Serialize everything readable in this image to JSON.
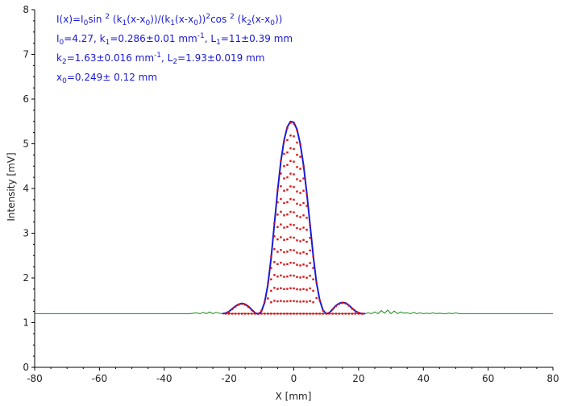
{
  "chart_data": {
    "type": "scatter",
    "title": "",
    "xlabel": "X [mm]",
    "ylabel": "Intensity [mV]",
    "xlim": [
      -80,
      80
    ],
    "ylim": [
      0,
      8
    ],
    "xticks": [
      -80,
      -60,
      -40,
      -20,
      0,
      20,
      40,
      60,
      80
    ],
    "yticks": [
      0,
      1,
      2,
      3,
      4,
      5,
      6,
      7,
      8
    ],
    "grid": false,
    "baseline": 1.2,
    "annotations": [
      {
        "parts": [
          [
            "I(x)=I",
            ""
          ],
          [
            "0",
            "sub"
          ],
          [
            "sin ",
            ""
          ],
          [
            "2",
            "sup"
          ],
          [
            " (k",
            ""
          ],
          [
            "1",
            "sub"
          ],
          [
            "(x-x",
            ""
          ],
          [
            "0",
            "sub"
          ],
          [
            "))/(k",
            ""
          ],
          [
            "1",
            "sub"
          ],
          [
            "(x-x",
            ""
          ],
          [
            "0",
            "sub"
          ],
          [
            "))",
            ""
          ],
          [
            "2",
            "sup"
          ],
          [
            "cos ",
            ""
          ],
          [
            "2",
            "sup"
          ],
          [
            " (k",
            ""
          ],
          [
            "2",
            "sub"
          ],
          [
            "(x-x",
            ""
          ],
          [
            "0",
            "sub"
          ],
          [
            "))",
            ""
          ]
        ]
      },
      {
        "parts": [
          [
            "I",
            ""
          ],
          [
            "0",
            "sub"
          ],
          [
            "=4.27,  k",
            ""
          ],
          [
            "1",
            "sub"
          ],
          [
            "=0.286±0.01 mm",
            ""
          ],
          [
            "-1",
            "sup"
          ],
          [
            ",   L",
            ""
          ],
          [
            "1",
            "sub"
          ],
          [
            "=11±0.39 mm",
            ""
          ]
        ]
      },
      {
        "parts": [
          [
            "k",
            ""
          ],
          [
            "2",
            "sub"
          ],
          [
            "=1.63±0.016 mm",
            ""
          ],
          [
            "-1",
            "sup"
          ],
          [
            ",   L",
            ""
          ],
          [
            "2",
            "sub"
          ],
          [
            "=1.93±0.019 mm",
            ""
          ]
        ]
      },
      {
        "parts": [
          [
            "x",
            ""
          ],
          [
            "0",
            "sub"
          ],
          [
            "=0.249±  0.12 mm",
            ""
          ]
        ]
      }
    ],
    "series": [
      {
        "kind": "measured-line",
        "color": "#118811",
        "x": [
          -80,
          -32,
          -30,
          -29,
          -28,
          -27,
          -26,
          -25,
          -24,
          -23,
          -22,
          22,
          23,
          24,
          25,
          26,
          27,
          28,
          29,
          30,
          31,
          32,
          33,
          34,
          35,
          36,
          37,
          38,
          39,
          40,
          41,
          42,
          43,
          44,
          45,
          46,
          47,
          48,
          49,
          50,
          51,
          52,
          80
        ],
        "y": [
          1.2,
          1.2,
          1.22,
          1.2,
          1.23,
          1.2,
          1.24,
          1.2,
          1.23,
          1.21,
          1.2,
          1.2,
          1.22,
          1.2,
          1.24,
          1.2,
          1.27,
          1.21,
          1.28,
          1.2,
          1.26,
          1.2,
          1.24,
          1.21,
          1.22,
          1.2,
          1.23,
          1.2,
          1.22,
          1.2,
          1.21,
          1.2,
          1.22,
          1.2,
          1.21,
          1.2,
          1.2,
          1.21,
          1.2,
          1.22,
          1.2,
          1.2,
          1.2
        ]
      },
      {
        "kind": "fit-line",
        "color": "#1a1ad6",
        "x": [
          -22,
          -21,
          -20,
          -19,
          -18,
          -17,
          -16,
          -15,
          -14,
          -13,
          -12,
          -11,
          -10,
          -9,
          -8,
          -7,
          -6,
          -5,
          -4,
          -3,
          -2,
          -1,
          0,
          1,
          2,
          3,
          4,
          5,
          6,
          7,
          8,
          9,
          10,
          11,
          12,
          13,
          14,
          15,
          16,
          17,
          18,
          19,
          20,
          21,
          22
        ],
        "y": [
          1.2,
          1.21,
          1.25,
          1.31,
          1.37,
          1.41,
          1.43,
          1.41,
          1.36,
          1.29,
          1.22,
          1.19,
          1.25,
          1.45,
          1.85,
          2.45,
          3.2,
          3.95,
          4.6,
          5.08,
          5.38,
          5.5,
          5.48,
          5.32,
          5.0,
          4.52,
          3.9,
          3.2,
          2.5,
          1.9,
          1.5,
          1.28,
          1.2,
          1.22,
          1.3,
          1.38,
          1.43,
          1.45,
          1.44,
          1.39,
          1.32,
          1.26,
          1.22,
          1.2,
          1.2
        ]
      },
      {
        "kind": "measured-points",
        "color": "#e01010",
        "x": [
          -21,
          -20,
          -19,
          -18,
          -17,
          -16,
          -15,
          -14,
          -13,
          -12,
          -11,
          -10,
          -9,
          -8,
          -7,
          -6,
          -5,
          -4,
          -3,
          -2,
          -1,
          0,
          1,
          2,
          3,
          4,
          5,
          6,
          7,
          8,
          9,
          10,
          11,
          12,
          13,
          14,
          15,
          16,
          17,
          18,
          19,
          20,
          21
        ],
        "y": [
          1.21,
          1.24,
          1.3,
          1.36,
          1.4,
          1.42,
          1.4,
          1.35,
          1.28,
          1.21,
          1.2,
          1.26,
          1.47,
          1.88,
          2.48,
          3.22,
          3.97,
          4.62,
          5.05,
          5.36,
          5.47,
          5.45,
          5.3,
          4.98,
          4.5,
          3.88,
          3.18,
          2.48,
          1.9,
          1.5,
          1.27,
          1.2,
          1.22,
          1.3,
          1.37,
          1.42,
          1.44,
          1.43,
          1.38,
          1.31,
          1.25,
          1.22,
          1.2
        ]
      }
    ]
  }
}
